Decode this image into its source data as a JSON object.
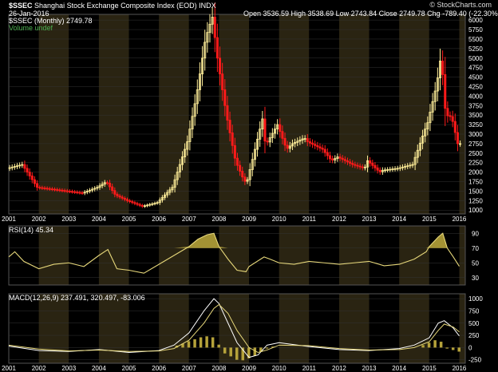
{
  "header": {
    "symbol": "$SSEC",
    "name": "Shanghai Stock Exchange Composite Index (EOD)",
    "exchange": "INDX",
    "date": "26-Jan-2016",
    "brand": "© StockCharts.com",
    "quote": "Open 3536.59 High 3538.69 Low 2743.84 Close 2749.78 Chg -789.40 (-22.30%)",
    "legend_price": "$SSEC (Monthly) 2749.78",
    "legend_volume": "Volume undef"
  },
  "colors": {
    "background": "#000000",
    "band_dark": "#000000",
    "band_light": "#2a2412",
    "up": "#ffee99",
    "down": "#ff1a1a",
    "line": "#e6d77a",
    "fill": "#b5a23a",
    "grid": "#333333",
    "text": "#ffffff"
  },
  "chart_data": [
    {
      "type": "candlestick",
      "title": "$SSEC (Monthly) 2749.78",
      "x_labels": [
        "2001",
        "2002",
        "2003",
        "2004",
        "2005",
        "2006",
        "2007",
        "2008",
        "2009",
        "2010",
        "2011",
        "2012",
        "2013",
        "2014",
        "2015",
        "2016"
      ],
      "y_ticks": [
        1000,
        1250,
        1500,
        1750,
        2000,
        2250,
        2500,
        2750,
        3000,
        3250,
        3500,
        3750,
        4000,
        4250,
        4500,
        4750,
        5000,
        5250,
        5500,
        5750,
        6000
      ],
      "ylim": [
        900,
        6150
      ],
      "series": [
        {
          "name": "close",
          "x": [
            2001.0,
            2001.5,
            2002.0,
            2002.5,
            2003.0,
            2003.5,
            2004.0,
            2004.3,
            2004.6,
            2005.0,
            2005.5,
            2006.0,
            2006.5,
            2007.0,
            2007.3,
            2007.6,
            2007.83,
            2008.0,
            2008.3,
            2008.6,
            2008.9,
            2009.0,
            2009.5,
            2009.6,
            2010.0,
            2010.3,
            2010.5,
            2010.9,
            2011.0,
            2011.5,
            2011.8,
            2012.0,
            2012.5,
            2012.9,
            2013.0,
            2013.4,
            2013.5,
            2014.0,
            2014.5,
            2014.9,
            2015.0,
            2015.3,
            2015.45,
            2015.6,
            2015.8,
            2016.0
          ],
          "values": [
            2100,
            2200,
            1600,
            1550,
            1500,
            1450,
            1600,
            1750,
            1400,
            1250,
            1100,
            1200,
            1600,
            2800,
            4000,
            5500,
            6100,
            5000,
            3500,
            2300,
            1750,
            1800,
            3400,
            2700,
            3250,
            2600,
            2750,
            2900,
            2800,
            2600,
            2300,
            2400,
            2200,
            2100,
            2300,
            2000,
            2050,
            2100,
            2200,
            3100,
            3300,
            4300,
            5100,
            3500,
            3450,
            2749.78
          ]
        }
      ]
    },
    {
      "type": "line",
      "title": "RSI(14) 45.34",
      "x_labels": [],
      "y_ticks": [
        30,
        50,
        70,
        90
      ],
      "ylim": [
        20,
        100
      ],
      "series": [
        {
          "name": "RSI(14)",
          "x": [
            2001.0,
            2001.2,
            2001.5,
            2002.0,
            2002.5,
            2003.0,
            2003.5,
            2004.0,
            2004.3,
            2004.6,
            2005.0,
            2005.5,
            2006.0,
            2006.5,
            2007.0,
            2007.3,
            2007.6,
            2007.83,
            2008.0,
            2008.3,
            2008.6,
            2008.9,
            2009.0,
            2009.5,
            2009.7,
            2010.0,
            2010.5,
            2011.0,
            2011.5,
            2012.0,
            2012.5,
            2013.0,
            2013.5,
            2014.0,
            2014.5,
            2014.9,
            2015.0,
            2015.3,
            2015.45,
            2015.6,
            2015.8,
            2016.0
          ],
          "values": [
            58,
            65,
            52,
            42,
            48,
            50,
            45,
            60,
            68,
            42,
            40,
            36,
            48,
            60,
            72,
            82,
            88,
            90,
            72,
            55,
            40,
            38,
            45,
            58,
            55,
            50,
            48,
            52,
            50,
            48,
            50,
            52,
            46,
            48,
            55,
            65,
            72,
            85,
            90,
            70,
            58,
            45.34
          ]
        }
      ]
    },
    {
      "type": "line",
      "title": "MACD(12,26,9) 237.491, 320.497, -83.006",
      "x_labels": [
        "2001",
        "2002",
        "2003",
        "2004",
        "2005",
        "2006",
        "2007",
        "2008",
        "2009",
        "2010",
        "2011",
        "2012",
        "2013",
        "2014",
        "2015",
        "2016"
      ],
      "y_ticks": [
        -250,
        0,
        250,
        500,
        750,
        1000
      ],
      "ylim": [
        -320,
        1100
      ],
      "series": [
        {
          "name": "MACD",
          "x": [
            2001.0,
            2002.0,
            2003.0,
            2004.0,
            2005.0,
            2006.0,
            2006.5,
            2007.0,
            2007.5,
            2007.83,
            2008.0,
            2008.3,
            2008.6,
            2009.0,
            2009.3,
            2009.6,
            2010.0,
            2011.0,
            2012.0,
            2013.0,
            2014.0,
            2014.5,
            2015.0,
            2015.3,
            2015.5,
            2015.8,
            2016.0
          ],
          "values": [
            30,
            -60,
            -80,
            -40,
            -100,
            -60,
            50,
            300,
            750,
            1000,
            900,
            500,
            100,
            -200,
            -150,
            50,
            100,
            20,
            -40,
            -60,
            -20,
            50,
            200,
            500,
            550,
            400,
            237.491
          ]
        },
        {
          "name": "Signal",
          "x": [
            2001.0,
            2002.0,
            2003.0,
            2004.0,
            2005.0,
            2006.0,
            2006.5,
            2007.0,
            2007.5,
            2007.83,
            2008.0,
            2008.3,
            2008.6,
            2009.0,
            2009.3,
            2009.6,
            2010.0,
            2011.0,
            2012.0,
            2013.0,
            2014.0,
            2014.5,
            2015.0,
            2015.3,
            2015.5,
            2015.8,
            2016.0
          ],
          "values": [
            50,
            -30,
            -70,
            -50,
            -80,
            -70,
            -20,
            150,
            500,
            800,
            880,
            700,
            350,
            0,
            -100,
            -50,
            50,
            40,
            -20,
            -50,
            -40,
            0,
            120,
            350,
            480,
            420,
            320.497
          ]
        },
        {
          "name": "Histogram",
          "x": [
            2006.6,
            2006.8,
            2007.0,
            2007.2,
            2007.4,
            2007.6,
            2007.8,
            2008.0,
            2008.2,
            2008.4,
            2008.6,
            2008.8,
            2009.0,
            2009.2,
            2009.4,
            2009.6,
            2009.8,
            2014.8,
            2015.0,
            2015.2,
            2015.4,
            2015.6,
            2015.8,
            2016.0
          ],
          "values": [
            40,
            80,
            130,
            170,
            210,
            230,
            210,
            60,
            -120,
            -180,
            -250,
            -260,
            -220,
            -170,
            -90,
            -20,
            20,
            50,
            100,
            150,
            120,
            -20,
            -50,
            -83.006
          ]
        }
      ]
    }
  ]
}
